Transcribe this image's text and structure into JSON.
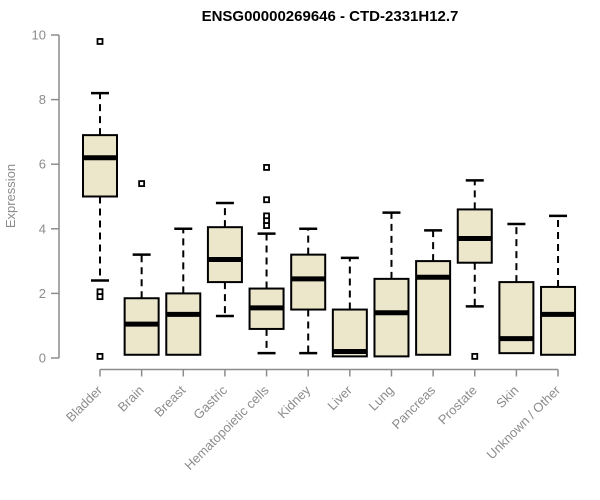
{
  "window": {
    "background": "#ffffff"
  },
  "chart_data": {
    "type": "boxplot",
    "title": "ENSG00000269646 - CTD-2331H12.7",
    "xlabel": "",
    "ylabel": "Expression",
    "ylim": [
      0,
      10
    ],
    "yticks": [
      0,
      2,
      4,
      6,
      8,
      10
    ],
    "grid": false,
    "legend": "none",
    "categories": [
      "Bladder",
      "Brain",
      "Breast",
      "Gastric",
      "Hematopoietic cells",
      "Kidney",
      "Liver",
      "Lung",
      "Pancreas",
      "Prostate",
      "Skin",
      "Unknown / Other"
    ],
    "series": [
      {
        "name": "Bladder",
        "whisker_low": 2.4,
        "q1": 5.0,
        "median": 6.2,
        "q3": 6.9,
        "whisker_high": 8.2,
        "outliers": [
          9.8,
          2.05,
          1.9,
          0.05
        ]
      },
      {
        "name": "Brain",
        "whisker_low": 0.1,
        "q1": 0.1,
        "median": 1.05,
        "q3": 1.85,
        "whisker_high": 3.2,
        "outliers": [
          5.4
        ]
      },
      {
        "name": "Breast",
        "whisker_low": 0.1,
        "q1": 0.1,
        "median": 1.35,
        "q3": 2.0,
        "whisker_high": 4.0,
        "outliers": []
      },
      {
        "name": "Gastric",
        "whisker_low": 1.3,
        "q1": 2.35,
        "median": 3.05,
        "q3": 4.05,
        "whisker_high": 4.8,
        "outliers": []
      },
      {
        "name": "Hematopoietic cells",
        "whisker_low": 0.15,
        "q1": 0.9,
        "median": 1.55,
        "q3": 2.15,
        "whisker_high": 3.85,
        "outliers": [
          5.9,
          4.9,
          4.4,
          4.25,
          4.1
        ]
      },
      {
        "name": "Kidney",
        "whisker_low": 0.15,
        "q1": 1.5,
        "median": 2.45,
        "q3": 3.2,
        "whisker_high": 4.0,
        "outliers": []
      },
      {
        "name": "Liver",
        "whisker_low": 0.05,
        "q1": 0.05,
        "median": 0.2,
        "q3": 1.5,
        "whisker_high": 3.1,
        "outliers": []
      },
      {
        "name": "Lung",
        "whisker_low": 0.05,
        "q1": 0.05,
        "median": 1.4,
        "q3": 2.45,
        "whisker_high": 4.5,
        "outliers": []
      },
      {
        "name": "Pancreas",
        "whisker_low": 0.1,
        "q1": 0.1,
        "median": 2.5,
        "q3": 3.0,
        "whisker_high": 3.95,
        "outliers": []
      },
      {
        "name": "Prostate",
        "whisker_low": 1.6,
        "q1": 2.95,
        "median": 3.7,
        "q3": 4.6,
        "whisker_high": 5.5,
        "outliers": [
          0.05
        ]
      },
      {
        "name": "Skin",
        "whisker_low": 0.15,
        "q1": 0.15,
        "median": 0.6,
        "q3": 2.35,
        "whisker_high": 4.15,
        "outliers": []
      },
      {
        "name": "Unknown / Other",
        "whisker_low": 0.1,
        "q1": 0.1,
        "median": 1.35,
        "q3": 2.2,
        "whisker_high": 4.4,
        "outliers": []
      }
    ],
    "colors": {
      "box_fill": "#ECE6CB",
      "box_stroke": "#000000",
      "median": "#000000",
      "whisker": "#000000",
      "axis": "#8c8c8c",
      "tick_label": "#8c8c8c",
      "title": "#000000"
    }
  }
}
